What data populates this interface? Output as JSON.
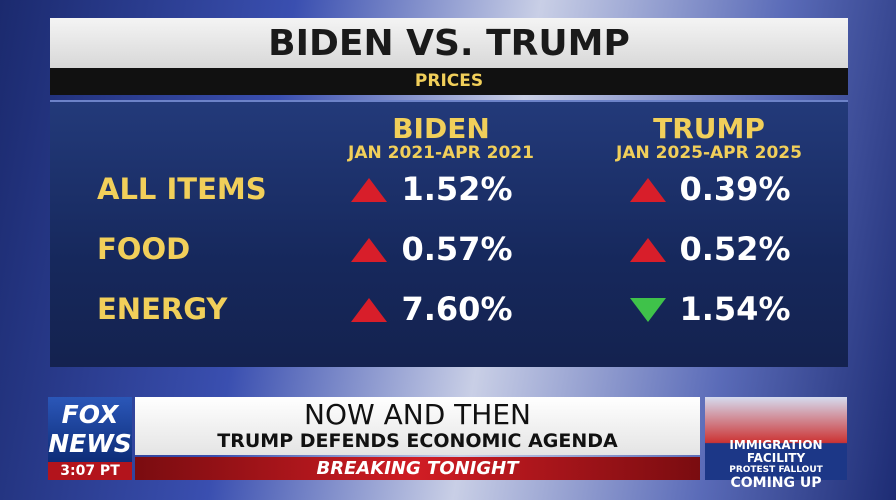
{
  "header": {
    "title": "BIDEN VS. TRUMP",
    "subtitle": "PRICES"
  },
  "table": {
    "columns": [
      {
        "name": "BIDEN",
        "period": "JAN 2021-APR 2021"
      },
      {
        "name": "TRUMP",
        "period": "JAN 2025-APR 2025"
      }
    ],
    "rows": [
      {
        "label": "ALL ITEMS",
        "cells": [
          {
            "text": "1.52%",
            "trend": "up"
          },
          {
            "text": "0.39%",
            "trend": "up"
          }
        ]
      },
      {
        "label": "FOOD",
        "cells": [
          {
            "text": "0.57%",
            "trend": "up"
          },
          {
            "text": "0.52%",
            "trend": "up"
          }
        ]
      },
      {
        "label": "ENERGY",
        "cells": [
          {
            "text": "7.60%",
            "trend": "up"
          },
          {
            "text": "1.54%",
            "trend": "down"
          }
        ]
      }
    ]
  },
  "lower_third": {
    "logo": [
      "FOX",
      "NEWS"
    ],
    "time": "3:07 PT",
    "headline": "NOW AND THEN",
    "subheadline": "TRUMP DEFENDS ECONOMIC AGENDA",
    "banner": "BREAKING TONIGHT",
    "promo": [
      "IMMIGRATION FACILITY",
      "PROTEST FALLOUT",
      "COMING UP"
    ]
  }
}
